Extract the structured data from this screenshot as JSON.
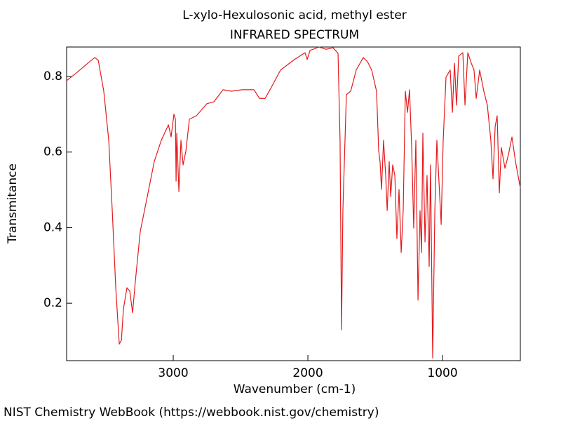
{
  "chart_data": {
    "type": "line",
    "title": "L-xylo-Hexulosonic acid, methyl ester",
    "subtitle": "INFRARED SPECTRUM",
    "x_label": "Wavenumber (cm-1)",
    "y_label": "Transmitance",
    "footer": "NIST Chemistry WebBook (https://webbook.nist.gov/chemistry)",
    "xlim": [
      3792,
      422
    ],
    "ylim": [
      0.048,
      0.878
    ],
    "xticks": [
      3000,
      2000,
      1000
    ],
    "yticks": [
      0.2,
      0.4,
      0.6,
      0.8
    ],
    "grid": false,
    "series": [
      {
        "name": "spectrum",
        "color": "#e41a1c",
        "x": [
          3792,
          3714,
          3635,
          3583,
          3557,
          3516,
          3479,
          3453,
          3427,
          3401,
          3385,
          3370,
          3344,
          3323,
          3302,
          3281,
          3245,
          3193,
          3141,
          3089,
          3036,
          3016,
          2995,
          2984,
          2979,
          2974,
          2958,
          2943,
          2927,
          2906,
          2880,
          2828,
          2750,
          2698,
          2630,
          2568,
          2490,
          2401,
          2359,
          2318,
          2281,
          2203,
          2099,
          2021,
          2005,
          1984,
          1917,
          1865,
          1813,
          1776,
          1761,
          1750,
          1740,
          1714,
          1682,
          1641,
          1589,
          1557,
          1526,
          1490,
          1474,
          1464,
          1453,
          1438,
          1422,
          1411,
          1396,
          1385,
          1370,
          1354,
          1339,
          1323,
          1307,
          1292,
          1276,
          1260,
          1245,
          1229,
          1214,
          1198,
          1182,
          1167,
          1156,
          1146,
          1130,
          1115,
          1099,
          1089,
          1073,
          1057,
          1042,
          1026,
          1010,
          995,
          974,
          943,
          927,
          911,
          896,
          880,
          849,
          833,
          812,
          786,
          766,
          750,
          740,
          724,
          693,
          667,
          641,
          625,
          609,
          594,
          578,
          563,
          536,
          510,
          484,
          458,
          422
        ],
        "values": [
          0.789,
          0.811,
          0.835,
          0.85,
          0.843,
          0.761,
          0.631,
          0.445,
          0.241,
          0.092,
          0.102,
          0.185,
          0.241,
          0.232,
          0.175,
          0.26,
          0.39,
          0.482,
          0.575,
          0.631,
          0.672,
          0.64,
          0.7,
          0.687,
          0.523,
          0.65,
          0.495,
          0.631,
          0.566,
          0.603,
          0.687,
          0.696,
          0.728,
          0.733,
          0.765,
          0.761,
          0.765,
          0.765,
          0.742,
          0.742,
          0.765,
          0.817,
          0.845,
          0.863,
          0.845,
          0.869,
          0.878,
          0.872,
          0.876,
          0.861,
          0.631,
          0.13,
          0.445,
          0.752,
          0.761,
          0.817,
          0.85,
          0.839,
          0.817,
          0.761,
          0.603,
          0.575,
          0.501,
          0.631,
          0.538,
          0.445,
          0.575,
          0.482,
          0.566,
          0.538,
          0.371,
          0.501,
          0.334,
          0.445,
          0.761,
          0.705,
          0.765,
          0.612,
          0.399,
          0.631,
          0.208,
          0.445,
          0.334,
          0.65,
          0.362,
          0.538,
          0.297,
          0.566,
          0.055,
          0.445,
          0.631,
          0.52,
          0.408,
          0.631,
          0.798,
          0.817,
          0.705,
          0.835,
          0.724,
          0.854,
          0.863,
          0.724,
          0.863,
          0.835,
          0.817,
          0.742,
          0.77,
          0.817,
          0.761,
          0.724,
          0.631,
          0.529,
          0.668,
          0.696,
          0.492,
          0.612,
          0.557,
          0.594,
          0.64,
          0.575,
          0.505
        ]
      }
    ]
  }
}
